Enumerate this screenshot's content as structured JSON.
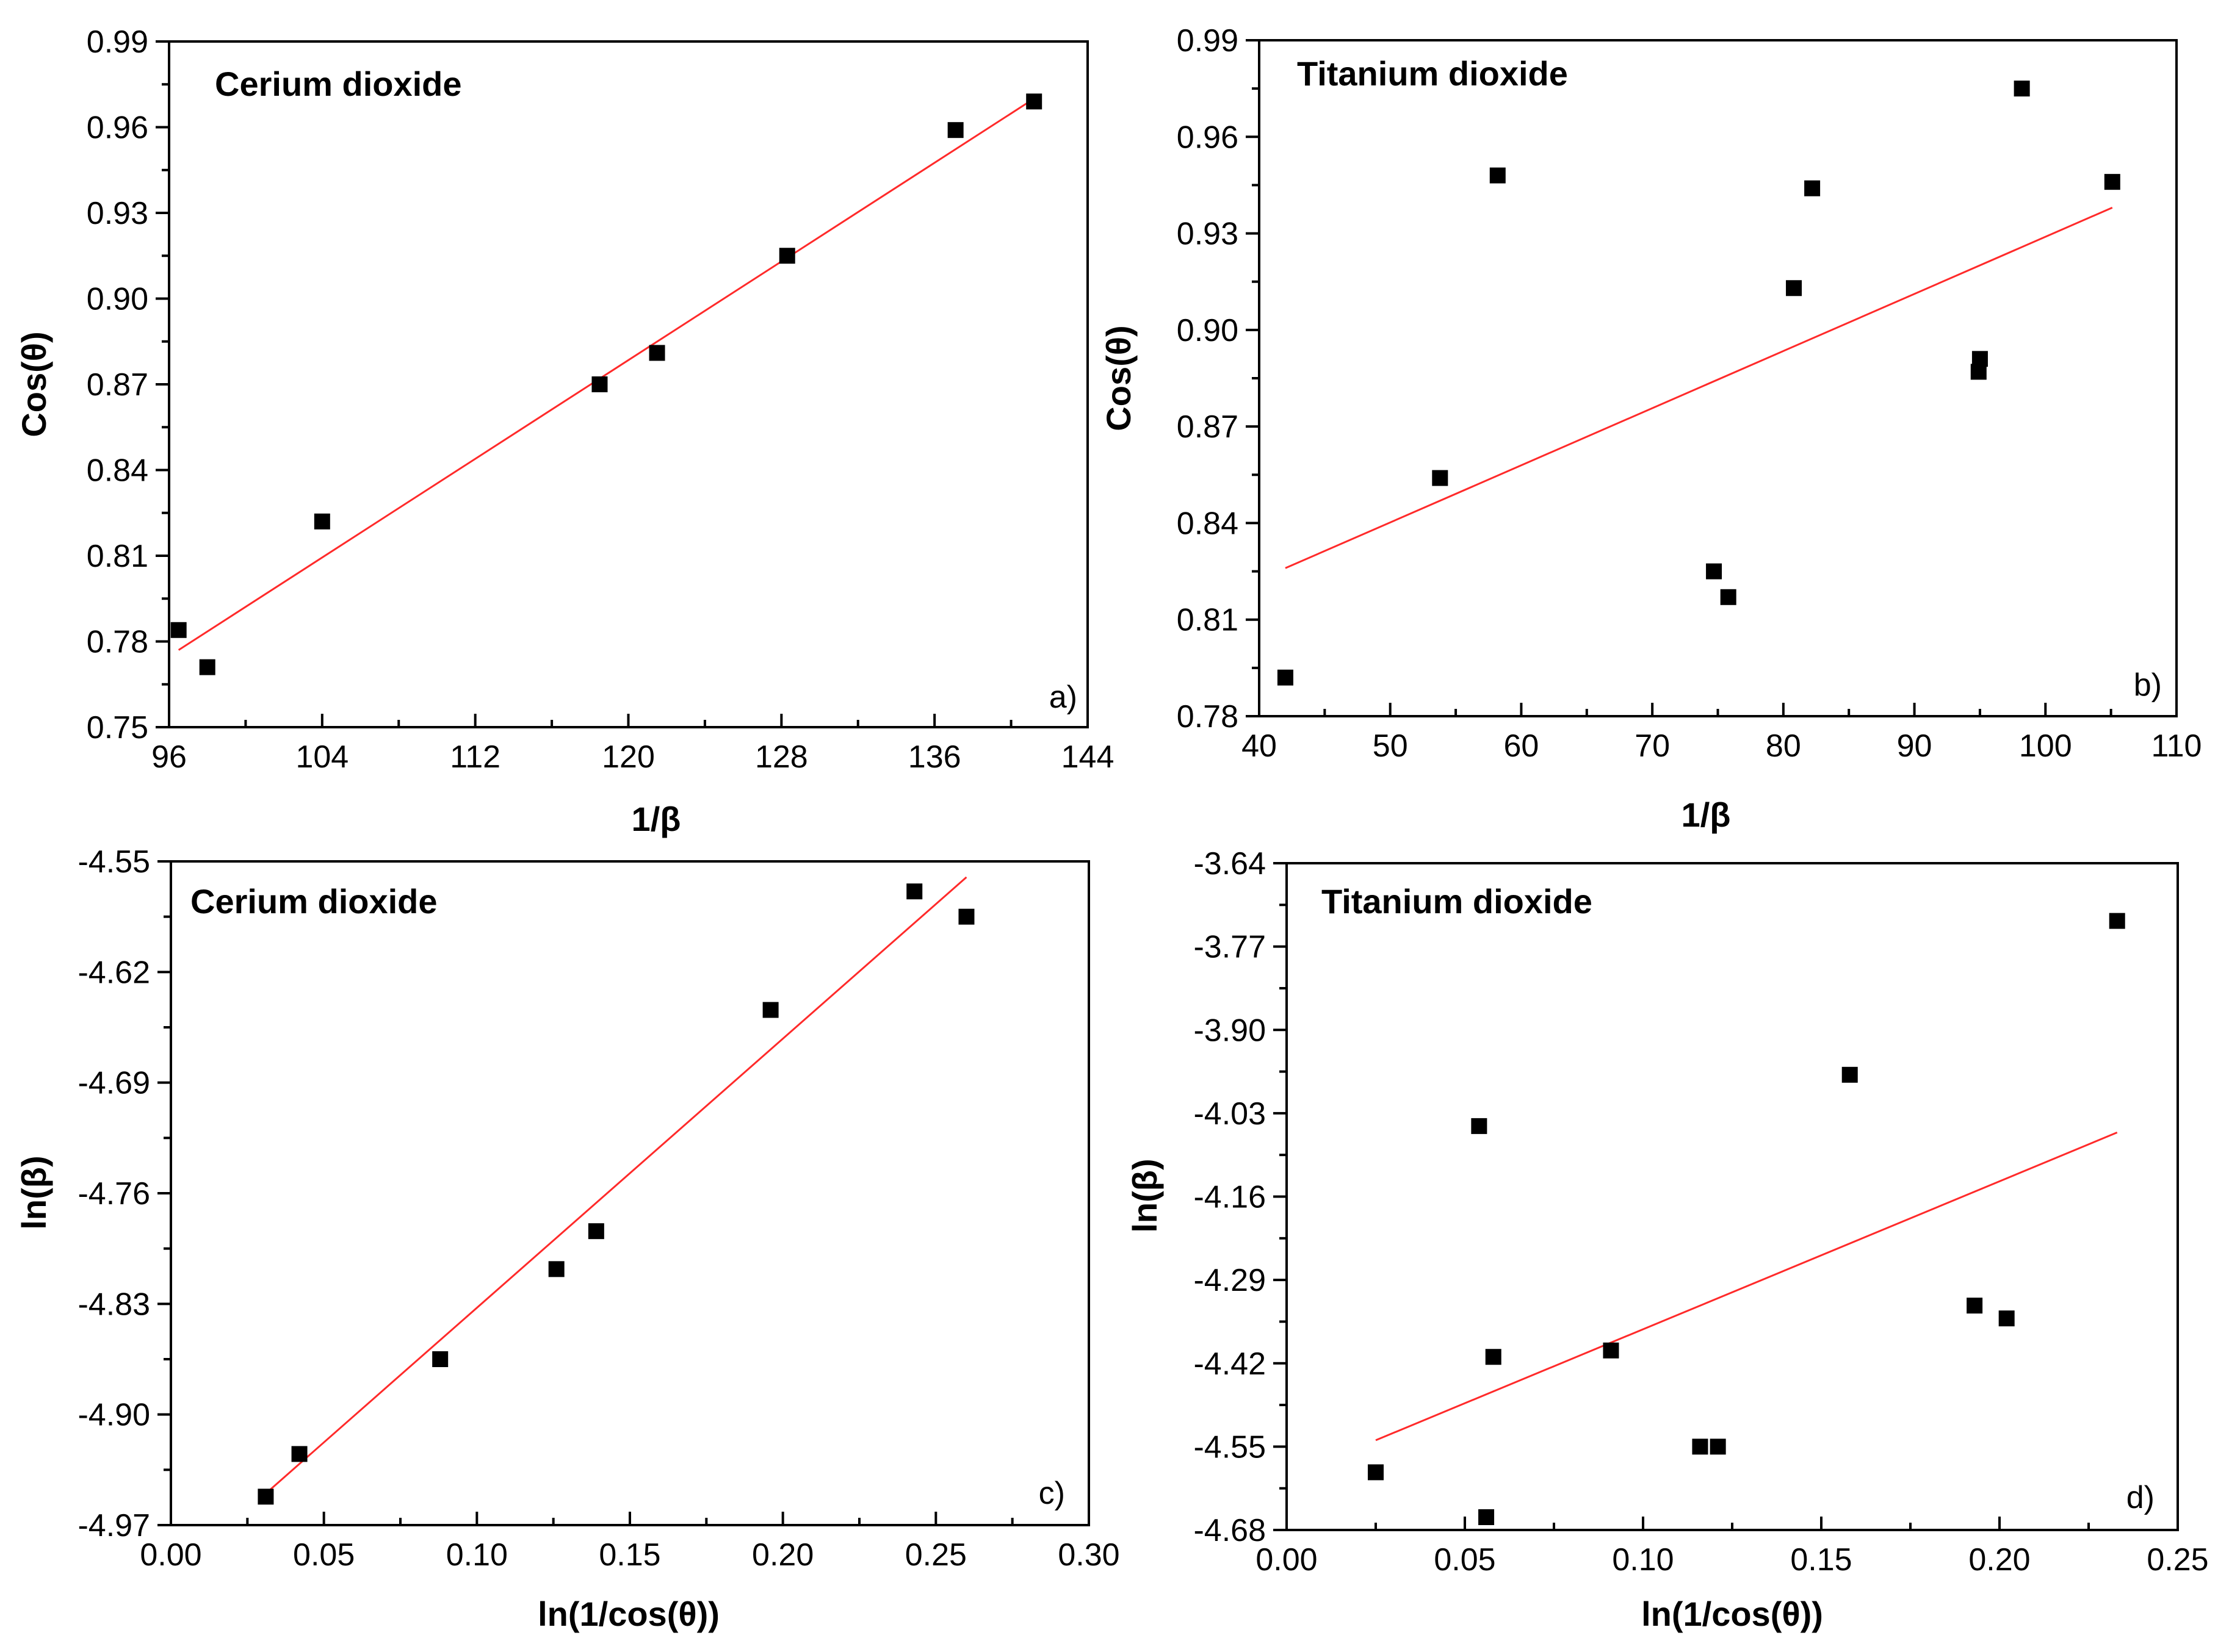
{
  "chart_data": [
    {
      "type": "scatter",
      "title": "Cerium  dioxide",
      "panel_label": "a)",
      "xlabel": "1/β",
      "ylabel": "Cos(θ)",
      "xlim": [
        96,
        144
      ],
      "ylim": [
        0.75,
        0.99
      ],
      "xticks": [
        "96",
        "104",
        "112",
        "120",
        "128",
        "136",
        "144"
      ],
      "yticks": [
        "0.75",
        "0.78",
        "0.81",
        "0.84",
        "0.87",
        "0.90",
        "0.93",
        "0.96",
        "0.99"
      ],
      "x_minor_count": 1,
      "y_minor_count": 1,
      "series": [
        {
          "name": "data",
          "x": [
            96.5,
            98.0,
            104.0,
            118.5,
            121.5,
            128.3,
            137.1,
            141.2
          ],
          "y": [
            0.784,
            0.771,
            0.822,
            0.87,
            0.881,
            0.915,
            0.959,
            0.969
          ]
        }
      ],
      "fit": {
        "x": [
          96.5,
          141.2
        ],
        "y": [
          0.777,
          0.97
        ]
      },
      "fit_color": "#ff2a2a"
    },
    {
      "type": "scatter",
      "title": "Titanium  dioxide",
      "panel_label": "b)",
      "xlabel": "1/β",
      "ylabel": "Cos(θ)",
      "xlim": [
        40,
        110
      ],
      "ylim": [
        0.78,
        0.99
      ],
      "xticks": [
        "40",
        "50",
        "60",
        "70",
        "80",
        "90",
        "100",
        "110"
      ],
      "yticks": [
        "0.78",
        "0.81",
        "0.84",
        "0.87",
        "0.90",
        "0.93",
        "0.96",
        "0.99"
      ],
      "x_minor_count": 1,
      "y_minor_count": 1,
      "series": [
        {
          "name": "data",
          "x": [
            42.0,
            53.8,
            58.2,
            74.7,
            75.8,
            80.8,
            82.2,
            94.9,
            95.0,
            98.2,
            105.1
          ],
          "y": [
            0.792,
            0.854,
            0.948,
            0.825,
            0.817,
            0.913,
            0.944,
            0.887,
            0.891,
            0.975,
            0.946
          ]
        }
      ],
      "fit": {
        "x": [
          42.0,
          105.1
        ],
        "y": [
          0.826,
          0.938
        ]
      },
      "fit_color": "#ff2a2a"
    },
    {
      "type": "scatter",
      "title": "Cerium  dioxide",
      "panel_label": "c)",
      "xlabel": "ln(1/cos(θ))",
      "ylabel": "ln(β)",
      "xlim": [
        0.0,
        0.3
      ],
      "ylim": [
        -4.97,
        -4.55
      ],
      "xticks": [
        "0.00",
        "0.05",
        "0.10",
        "0.15",
        "0.20",
        "0.25",
        "0.30"
      ],
      "yticks": [
        "-4.97",
        "-4.90",
        "-4.83",
        "-4.76",
        "-4.69",
        "-4.62",
        "-4.55"
      ],
      "x_minor_count": 1,
      "y_minor_count": 1,
      "series": [
        {
          "name": "data",
          "x": [
            0.031,
            0.042,
            0.088,
            0.126,
            0.139,
            0.196,
            0.243,
            0.26
          ],
          "y": [
            -4.952,
            -4.925,
            -4.865,
            -4.808,
            -4.784,
            -4.644,
            -4.569,
            -4.585
          ]
        }
      ],
      "fit": {
        "x": [
          0.031,
          0.26
        ],
        "y": [
          -4.95,
          -4.56
        ]
      },
      "fit_color": "#ff2a2a"
    },
    {
      "type": "scatter",
      "title": "Titanium  dioxide",
      "panel_label": "d)",
      "xlabel": "ln(1/cos(θ))",
      "ylabel": "ln(β)",
      "xlim": [
        0.0,
        0.25
      ],
      "ylim": [
        -4.68,
        -3.64
      ],
      "xticks": [
        "0.00",
        "0.05",
        "0.10",
        "0.15",
        "0.20",
        "0.25"
      ],
      "yticks": [
        "-4.68",
        "-4.55",
        "-4.42",
        "-4.29",
        "-4.16",
        "-4.03",
        "-3.90",
        "-3.77",
        "-3.64"
      ],
      "x_minor_count": 1,
      "y_minor_count": 1,
      "series": [
        {
          "name": "data",
          "x": [
            0.025,
            0.054,
            0.056,
            0.058,
            0.091,
            0.116,
            0.121,
            0.158,
            0.193,
            0.202,
            0.233
          ],
          "y": [
            -4.59,
            -4.05,
            -4.66,
            -4.41,
            -4.4,
            -4.55,
            -4.55,
            -3.97,
            -4.33,
            -4.35,
            -3.73
          ]
        }
      ],
      "fit": {
        "x": [
          0.025,
          0.233
        ],
        "y": [
          -4.54,
          -4.06
        ]
      },
      "fit_color": "#ff2a2a"
    }
  ]
}
